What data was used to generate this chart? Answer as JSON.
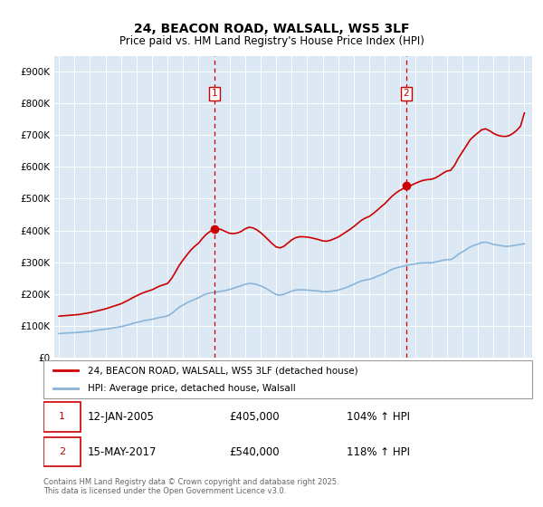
{
  "title": "24, BEACON ROAD, WALSALL, WS5 3LF",
  "subtitle": "Price paid vs. HM Land Registry's House Price Index (HPI)",
  "xlim_start": 1994.7,
  "xlim_end": 2025.5,
  "ylim": [
    0,
    950000
  ],
  "yticks": [
    0,
    100000,
    200000,
    300000,
    400000,
    500000,
    600000,
    700000,
    800000,
    900000
  ],
  "ytick_labels": [
    "£0",
    "£100K",
    "£200K",
    "£300K",
    "£400K",
    "£500K",
    "£600K",
    "£700K",
    "£800K",
    "£900K"
  ],
  "xticks": [
    1995,
    1996,
    1997,
    1998,
    1999,
    2000,
    2001,
    2002,
    2003,
    2004,
    2005,
    2006,
    2007,
    2008,
    2009,
    2010,
    2011,
    2012,
    2013,
    2014,
    2015,
    2016,
    2017,
    2018,
    2019,
    2020,
    2021,
    2022,
    2023,
    2024,
    2025
  ],
  "sale1_date": 2005.04,
  "sale1_label": "1",
  "sale1_price": 405000,
  "sale2_date": 2017.37,
  "sale2_label": "2",
  "sale2_price": 540000,
  "vline_color": "#cc0000",
  "hpi_line_color": "#8ab4d8",
  "price_line_color": "#cc0000",
  "plot_bg_color": "#dce9f5",
  "legend1_label": "24, BEACON ROAD, WALSALL, WS5 3LF (detached house)",
  "legend2_label": "HPI: Average price, detached house, Walsall",
  "sale1_date_str": "12-JAN-2005",
  "sale1_price_str": "£405,000",
  "sale1_hpi_str": "104% ↑ HPI",
  "sale2_date_str": "15-MAY-2017",
  "sale2_price_str": "£540,000",
  "sale2_hpi_str": "118% ↑ HPI",
  "footer": "Contains HM Land Registry data © Crown copyright and database right 2025.\nThis data is licensed under the Open Government Licence v3.0.",
  "hpi_data": [
    [
      1995.0,
      75000
    ],
    [
      1995.25,
      76000
    ],
    [
      1995.5,
      77000
    ],
    [
      1995.75,
      77500
    ],
    [
      1996.0,
      78000
    ],
    [
      1996.25,
      79000
    ],
    [
      1996.5,
      80000
    ],
    [
      1996.75,
      81000
    ],
    [
      1997.0,
      82000
    ],
    [
      1997.25,
      84000
    ],
    [
      1997.5,
      86000
    ],
    [
      1997.75,
      88000
    ],
    [
      1998.0,
      89000
    ],
    [
      1998.25,
      91000
    ],
    [
      1998.5,
      93000
    ],
    [
      1998.75,
      95000
    ],
    [
      1999.0,
      97000
    ],
    [
      1999.25,
      100000
    ],
    [
      1999.5,
      103000
    ],
    [
      1999.75,
      107000
    ],
    [
      2000.0,
      110000
    ],
    [
      2000.25,
      113000
    ],
    [
      2000.5,
      116000
    ],
    [
      2000.75,
      118000
    ],
    [
      2001.0,
      120000
    ],
    [
      2001.25,
      123000
    ],
    [
      2001.5,
      126000
    ],
    [
      2001.75,
      128000
    ],
    [
      2002.0,
      131000
    ],
    [
      2002.25,
      138000
    ],
    [
      2002.5,
      148000
    ],
    [
      2002.75,
      158000
    ],
    [
      2003.0,
      165000
    ],
    [
      2003.25,
      172000
    ],
    [
      2003.5,
      178000
    ],
    [
      2003.75,
      183000
    ],
    [
      2004.0,
      188000
    ],
    [
      2004.25,
      195000
    ],
    [
      2004.5,
      200000
    ],
    [
      2004.75,
      203000
    ],
    [
      2005.0,
      205000
    ],
    [
      2005.25,
      207000
    ],
    [
      2005.5,
      209000
    ],
    [
      2005.75,
      211000
    ],
    [
      2006.0,
      214000
    ],
    [
      2006.25,
      218000
    ],
    [
      2006.5,
      222000
    ],
    [
      2006.75,
      226000
    ],
    [
      2007.0,
      230000
    ],
    [
      2007.25,
      233000
    ],
    [
      2007.5,
      232000
    ],
    [
      2007.75,
      230000
    ],
    [
      2008.0,
      225000
    ],
    [
      2008.25,
      220000
    ],
    [
      2008.5,
      213000
    ],
    [
      2008.75,
      205000
    ],
    [
      2009.0,
      198000
    ],
    [
      2009.25,
      196000
    ],
    [
      2009.5,
      199000
    ],
    [
      2009.75,
      204000
    ],
    [
      2010.0,
      209000
    ],
    [
      2010.25,
      212000
    ],
    [
      2010.5,
      213000
    ],
    [
      2010.75,
      213000
    ],
    [
      2011.0,
      212000
    ],
    [
      2011.25,
      211000
    ],
    [
      2011.5,
      210000
    ],
    [
      2011.75,
      209000
    ],
    [
      2012.0,
      207000
    ],
    [
      2012.25,
      207000
    ],
    [
      2012.5,
      208000
    ],
    [
      2012.75,
      210000
    ],
    [
      2013.0,
      212000
    ],
    [
      2013.25,
      216000
    ],
    [
      2013.5,
      220000
    ],
    [
      2013.75,
      225000
    ],
    [
      2014.0,
      230000
    ],
    [
      2014.25,
      236000
    ],
    [
      2014.5,
      241000
    ],
    [
      2014.75,
      244000
    ],
    [
      2015.0,
      246000
    ],
    [
      2015.25,
      250000
    ],
    [
      2015.5,
      255000
    ],
    [
      2015.75,
      260000
    ],
    [
      2016.0,
      265000
    ],
    [
      2016.25,
      272000
    ],
    [
      2016.5,
      278000
    ],
    [
      2016.75,
      282000
    ],
    [
      2017.0,
      285000
    ],
    [
      2017.25,
      288000
    ],
    [
      2017.5,
      291000
    ],
    [
      2017.75,
      293000
    ],
    [
      2018.0,
      295000
    ],
    [
      2018.25,
      297000
    ],
    [
      2018.5,
      298000
    ],
    [
      2018.75,
      298000
    ],
    [
      2019.0,
      298000
    ],
    [
      2019.25,
      300000
    ],
    [
      2019.5,
      303000
    ],
    [
      2019.75,
      306000
    ],
    [
      2020.0,
      308000
    ],
    [
      2020.25,
      308000
    ],
    [
      2020.5,
      315000
    ],
    [
      2020.75,
      325000
    ],
    [
      2021.0,
      332000
    ],
    [
      2021.25,
      340000
    ],
    [
      2021.5,
      348000
    ],
    [
      2021.75,
      353000
    ],
    [
      2022.0,
      357000
    ],
    [
      2022.25,
      362000
    ],
    [
      2022.5,
      363000
    ],
    [
      2022.75,
      360000
    ],
    [
      2023.0,
      356000
    ],
    [
      2023.25,
      354000
    ],
    [
      2023.5,
      352000
    ],
    [
      2023.75,
      350000
    ],
    [
      2024.0,
      350000
    ],
    [
      2024.25,
      352000
    ],
    [
      2024.5,
      354000
    ],
    [
      2024.75,
      356000
    ],
    [
      2025.0,
      358000
    ]
  ],
  "price_data": [
    [
      1995.0,
      130000
    ],
    [
      1995.25,
      131000
    ],
    [
      1995.5,
      132000
    ],
    [
      1995.75,
      133000
    ],
    [
      1996.0,
      134000
    ],
    [
      1996.25,
      135000
    ],
    [
      1996.5,
      137000
    ],
    [
      1996.75,
      139000
    ],
    [
      1997.0,
      141000
    ],
    [
      1997.25,
      144000
    ],
    [
      1997.5,
      147000
    ],
    [
      1997.75,
      150000
    ],
    [
      1998.0,
      153000
    ],
    [
      1998.25,
      157000
    ],
    [
      1998.5,
      161000
    ],
    [
      1998.75,
      165000
    ],
    [
      1999.0,
      169000
    ],
    [
      1999.25,
      175000
    ],
    [
      1999.5,
      181000
    ],
    [
      1999.75,
      188000
    ],
    [
      2000.0,
      194000
    ],
    [
      2000.25,
      200000
    ],
    [
      2000.5,
      205000
    ],
    [
      2000.75,
      209000
    ],
    [
      2001.0,
      213000
    ],
    [
      2001.25,
      219000
    ],
    [
      2001.5,
      225000
    ],
    [
      2001.75,
      229000
    ],
    [
      2002.0,
      233000
    ],
    [
      2002.25,
      248000
    ],
    [
      2002.5,
      268000
    ],
    [
      2002.75,
      290000
    ],
    [
      2003.0,
      307000
    ],
    [
      2003.25,
      323000
    ],
    [
      2003.5,
      338000
    ],
    [
      2003.75,
      350000
    ],
    [
      2004.0,
      360000
    ],
    [
      2004.25,
      375000
    ],
    [
      2004.5,
      388000
    ],
    [
      2004.75,
      397000
    ],
    [
      2005.0,
      405000
    ],
    [
      2005.25,
      406000
    ],
    [
      2005.5,
      402000
    ],
    [
      2005.75,
      396000
    ],
    [
      2006.0,
      391000
    ],
    [
      2006.25,
      390000
    ],
    [
      2006.5,
      392000
    ],
    [
      2006.75,
      397000
    ],
    [
      2007.0,
      405000
    ],
    [
      2007.25,
      410000
    ],
    [
      2007.5,
      408000
    ],
    [
      2007.75,
      402000
    ],
    [
      2008.0,
      393000
    ],
    [
      2008.25,
      382000
    ],
    [
      2008.5,
      370000
    ],
    [
      2008.75,
      358000
    ],
    [
      2009.0,
      348000
    ],
    [
      2009.25,
      345000
    ],
    [
      2009.5,
      350000
    ],
    [
      2009.75,
      360000
    ],
    [
      2010.0,
      370000
    ],
    [
      2010.25,
      377000
    ],
    [
      2010.5,
      380000
    ],
    [
      2010.75,
      380000
    ],
    [
      2011.0,
      379000
    ],
    [
      2011.25,
      377000
    ],
    [
      2011.5,
      374000
    ],
    [
      2011.75,
      371000
    ],
    [
      2012.0,
      367000
    ],
    [
      2012.25,
      366000
    ],
    [
      2012.5,
      369000
    ],
    [
      2012.75,
      374000
    ],
    [
      2013.0,
      379000
    ],
    [
      2013.25,
      387000
    ],
    [
      2013.5,
      395000
    ],
    [
      2013.75,
      403000
    ],
    [
      2014.0,
      412000
    ],
    [
      2014.25,
      422000
    ],
    [
      2014.5,
      432000
    ],
    [
      2014.75,
      439000
    ],
    [
      2015.0,
      444000
    ],
    [
      2015.25,
      453000
    ],
    [
      2015.5,
      463000
    ],
    [
      2015.75,
      474000
    ],
    [
      2016.0,
      484000
    ],
    [
      2016.25,
      497000
    ],
    [
      2016.5,
      509000
    ],
    [
      2016.75,
      519000
    ],
    [
      2017.0,
      527000
    ],
    [
      2017.25,
      533000
    ],
    [
      2017.5,
      538000
    ],
    [
      2017.75,
      543000
    ],
    [
      2018.0,
      549000
    ],
    [
      2018.25,
      554000
    ],
    [
      2018.5,
      558000
    ],
    [
      2018.75,
      560000
    ],
    [
      2019.0,
      561000
    ],
    [
      2019.25,
      565000
    ],
    [
      2019.5,
      572000
    ],
    [
      2019.75,
      580000
    ],
    [
      2020.0,
      587000
    ],
    [
      2020.25,
      589000
    ],
    [
      2020.5,
      605000
    ],
    [
      2020.75,
      628000
    ],
    [
      2021.0,
      647000
    ],
    [
      2021.25,
      666000
    ],
    [
      2021.5,
      685000
    ],
    [
      2021.75,
      697000
    ],
    [
      2022.0,
      707000
    ],
    [
      2022.25,
      717000
    ],
    [
      2022.5,
      720000
    ],
    [
      2022.75,
      714000
    ],
    [
      2023.0,
      706000
    ],
    [
      2023.25,
      700000
    ],
    [
      2023.5,
      697000
    ],
    [
      2023.75,
      696000
    ],
    [
      2024.0,
      698000
    ],
    [
      2024.25,
      705000
    ],
    [
      2024.5,
      715000
    ],
    [
      2024.75,
      728000
    ],
    [
      2025.0,
      770000
    ]
  ]
}
